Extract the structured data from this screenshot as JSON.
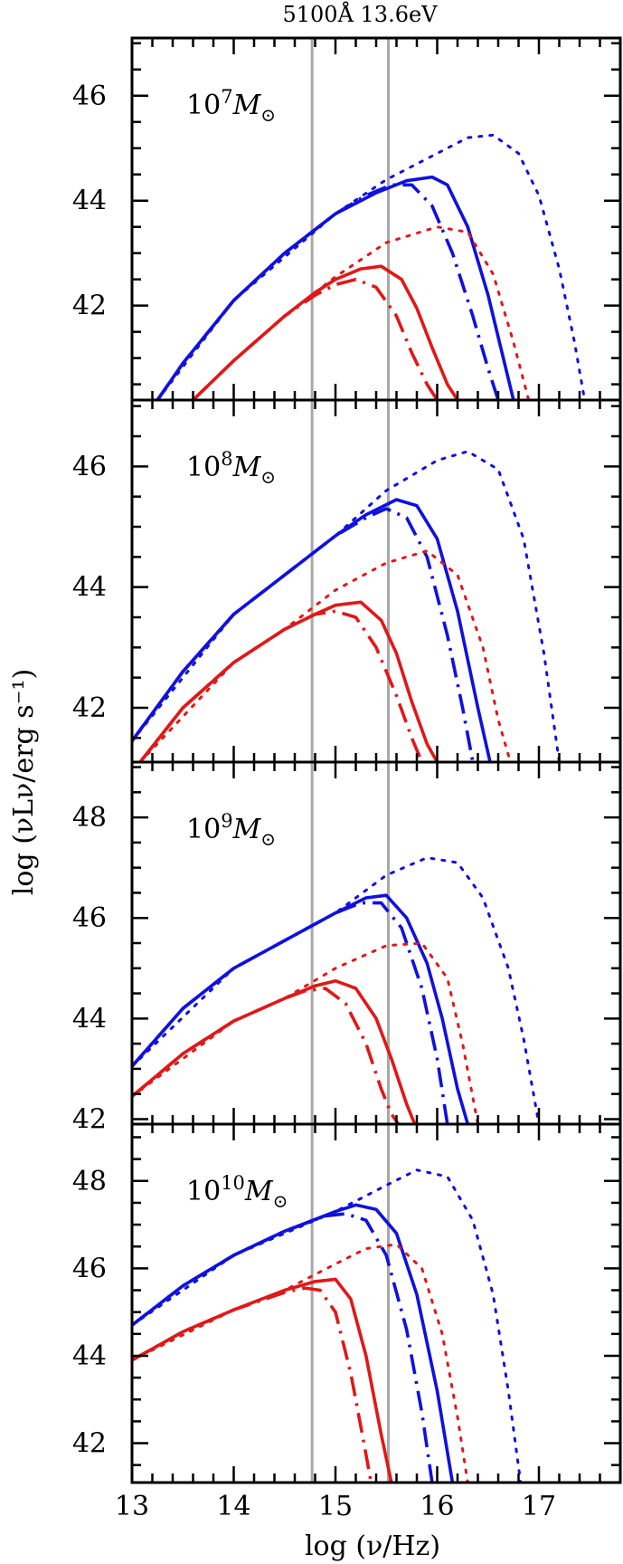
{
  "chart_data": {
    "type": "line",
    "top_annotation": "5100Å 13.6eV",
    "xlabel": "log (ν/Hz)",
    "ylabel": "log (νLν/erg s⁻¹)",
    "xlim": [
      13,
      17.8
    ],
    "xticks": [
      13,
      14,
      15,
      16,
      17
    ],
    "vertical_lines": [
      14.77,
      15.52
    ],
    "colors": {
      "blue": "#1010e0",
      "red": "#e01818",
      "vline": "#a8a8a8"
    },
    "panels": [
      {
        "label_base": "10",
        "label_exp": "7",
        "label_sub": "M",
        "ylim": [
          40.2,
          47.1
        ],
        "yticks": [
          42,
          44,
          46
        ],
        "series": [
          {
            "color": "blue",
            "style": "solid",
            "x": [
              13.25,
              13.5,
              14,
              14.5,
              15,
              15.4,
              15.7,
              15.95,
              16.1,
              16.3,
              16.5,
              16.65,
              16.75
            ],
            "y": [
              40.2,
              40.9,
              42.1,
              43.0,
              43.75,
              44.15,
              44.38,
              44.45,
              44.3,
              43.5,
              42.2,
              41.0,
              40.2
            ]
          },
          {
            "color": "blue",
            "style": "dashdot",
            "x": [
              13.25,
              13.5,
              14,
              14.5,
              15,
              15.3,
              15.55,
              15.75,
              15.95,
              16.15,
              16.35,
              16.5,
              16.6
            ],
            "y": [
              40.2,
              40.9,
              42.1,
              43.0,
              43.75,
              44.1,
              44.3,
              44.3,
              43.9,
              43.0,
              41.8,
              40.8,
              40.2
            ]
          },
          {
            "color": "blue",
            "style": "dotted",
            "x": [
              13.25,
              14,
              15,
              15.5,
              16,
              16.3,
              16.55,
              16.8,
              17.0,
              17.2,
              17.35,
              17.45
            ],
            "y": [
              40.2,
              42.1,
              43.75,
              44.4,
              44.9,
              45.2,
              45.25,
              44.9,
              44.1,
              42.7,
              41.3,
              40.2
            ]
          },
          {
            "color": "red",
            "style": "solid",
            "x": [
              13.6,
              14,
              14.5,
              14.8,
              15,
              15.25,
              15.45,
              15.65,
              15.8,
              15.95,
              16.1,
              16.2
            ],
            "y": [
              40.2,
              40.95,
              41.8,
              42.25,
              42.5,
              42.7,
              42.75,
              42.5,
              41.95,
              41.2,
              40.5,
              40.2
            ]
          },
          {
            "color": "red",
            "style": "dashdot",
            "x": [
              13.6,
              14,
              14.5,
              14.8,
              15,
              15.2,
              15.4,
              15.6,
              15.75,
              15.9,
              16.0
            ],
            "y": [
              40.2,
              40.95,
              41.8,
              42.2,
              42.4,
              42.5,
              42.35,
              41.8,
              41.1,
              40.5,
              40.2
            ]
          },
          {
            "color": "red",
            "style": "dotted",
            "x": [
              13.6,
              14,
              14.5,
              15,
              15.5,
              16.0,
              16.3,
              16.55,
              16.75,
              16.9
            ],
            "y": [
              40.2,
              40.95,
              41.8,
              42.55,
              43.2,
              43.5,
              43.4,
              42.6,
              41.3,
              40.2
            ]
          }
        ]
      },
      {
        "label_base": "10",
        "label_exp": "8",
        "label_sub": "M",
        "ylim": [
          41.1,
          47.1
        ],
        "yticks": [
          42,
          44,
          46
        ],
        "series": [
          {
            "color": "blue",
            "style": "solid",
            "x": [
              13,
              13.5,
              14,
              14.5,
              15,
              15.3,
              15.6,
              15.8,
              16.0,
              16.2,
              16.4,
              16.52
            ],
            "y": [
              41.45,
              42.6,
              43.55,
              44.2,
              44.85,
              45.2,
              45.45,
              45.35,
              44.8,
              43.6,
              42.0,
              41.1
            ]
          },
          {
            "color": "blue",
            "style": "dashdot",
            "x": [
              13,
              13.5,
              14,
              14.5,
              15,
              15.3,
              15.5,
              15.7,
              15.9,
              16.1,
              16.25,
              16.35
            ],
            "y": [
              41.45,
              42.6,
              43.55,
              44.2,
              44.85,
              45.15,
              45.3,
              45.15,
              44.5,
              43.2,
              42.0,
              41.1
            ]
          },
          {
            "color": "blue",
            "style": "dotted",
            "x": [
              13,
              14,
              15,
              15.5,
              16,
              16.3,
              16.6,
              16.85,
              17.05,
              17.2
            ],
            "y": [
              41.45,
              43.55,
              44.85,
              45.6,
              46.1,
              46.25,
              45.95,
              44.8,
              42.9,
              41.1
            ]
          },
          {
            "color": "red",
            "style": "solid",
            "x": [
              13.08,
              13.5,
              14,
              14.5,
              14.8,
              15.0,
              15.25,
              15.45,
              15.6,
              15.75,
              15.9,
              16.0
            ],
            "y": [
              41.1,
              42.0,
              42.75,
              43.3,
              43.55,
              43.7,
              43.75,
              43.45,
              42.9,
              42.1,
              41.4,
              41.1
            ]
          },
          {
            "color": "red",
            "style": "dashdot",
            "x": [
              13.08,
              13.5,
              14,
              14.5,
              14.8,
              15.0,
              15.2,
              15.4,
              15.6,
              15.75,
              15.85
            ],
            "y": [
              41.1,
              42.0,
              42.75,
              43.3,
              43.55,
              43.6,
              43.5,
              43.0,
              42.2,
              41.5,
              41.1
            ]
          },
          {
            "color": "red",
            "style": "dotted",
            "x": [
              13.08,
              14,
              14.5,
              15,
              15.5,
              15.9,
              16.2,
              16.45,
              16.6,
              16.72
            ],
            "y": [
              41.1,
              42.75,
              43.3,
              43.95,
              44.4,
              44.6,
              44.2,
              43.0,
              41.8,
              41.1
            ]
          }
        ]
      },
      {
        "label_base": "10",
        "label_exp": "9",
        "label_sub": "M",
        "ylim": [
          41.9,
          49.1
        ],
        "yticks": [
          42,
          44,
          46,
          48
        ],
        "series": [
          {
            "color": "blue",
            "style": "solid",
            "x": [
              13,
              13.5,
              14,
              14.5,
              15,
              15.3,
              15.5,
              15.7,
              15.9,
              16.05,
              16.2,
              16.3
            ],
            "y": [
              43.05,
              44.2,
              45.0,
              45.55,
              46.1,
              46.4,
              46.45,
              46.0,
              45.1,
              44.0,
              42.6,
              41.9
            ]
          },
          {
            "color": "blue",
            "style": "dashdot",
            "x": [
              13,
              13.5,
              14,
              14.5,
              15,
              15.25,
              15.45,
              15.65,
              15.85,
              16.0,
              16.1
            ],
            "y": [
              43.05,
              44.2,
              45.0,
              45.55,
              46.1,
              46.3,
              46.3,
              45.8,
              44.6,
              43.2,
              41.9
            ]
          },
          {
            "color": "blue",
            "style": "dotted",
            "x": [
              13,
              14,
              15,
              15.5,
              15.9,
              16.2,
              16.45,
              16.7,
              16.85,
              17.0
            ],
            "y": [
              43.05,
              45.0,
              46.1,
              46.85,
              47.2,
              47.1,
              46.4,
              45.0,
              43.6,
              41.9
            ]
          },
          {
            "color": "red",
            "style": "solid",
            "x": [
              13,
              13.5,
              14,
              14.5,
              14.8,
              15.0,
              15.2,
              15.4,
              15.55,
              15.7,
              15.78
            ],
            "y": [
              42.45,
              43.3,
              43.95,
              44.4,
              44.65,
              44.75,
              44.6,
              44.0,
              43.2,
              42.3,
              41.9
            ]
          },
          {
            "color": "red",
            "style": "dashdot",
            "x": [
              13,
              13.5,
              14,
              14.5,
              14.7,
              14.9,
              15.1,
              15.3,
              15.45,
              15.55,
              15.62
            ],
            "y": [
              42.45,
              43.3,
              43.95,
              44.4,
              44.55,
              44.6,
              44.3,
              43.5,
              42.6,
              42.1,
              41.9
            ]
          },
          {
            "color": "red",
            "style": "dotted",
            "x": [
              13,
              14,
              14.5,
              15,
              15.5,
              15.85,
              16.1,
              16.25,
              16.4
            ],
            "y": [
              42.45,
              43.95,
              44.4,
              45.0,
              45.45,
              45.5,
              44.8,
              43.5,
              41.9
            ]
          }
        ]
      },
      {
        "label_base": "10",
        "label_exp": "10",
        "label_sub": "M",
        "ylim": [
          41.1,
          49.3
        ],
        "yticks": [
          42,
          44,
          46,
          48
        ],
        "series": [
          {
            "color": "blue",
            "style": "solid",
            "x": [
              13,
              13.5,
              14,
              14.5,
              15,
              15.2,
              15.4,
              15.6,
              15.8,
              16.0,
              16.15
            ],
            "y": [
              44.7,
              45.6,
              46.3,
              46.85,
              47.3,
              47.45,
              47.35,
              46.8,
              45.4,
              43.2,
              41.1
            ]
          },
          {
            "color": "blue",
            "style": "dashdot",
            "x": [
              13,
              13.5,
              14,
              14.5,
              14.9,
              15.1,
              15.3,
              15.5,
              15.7,
              15.85,
              15.95
            ],
            "y": [
              44.7,
              45.6,
              46.3,
              46.85,
              47.2,
              47.25,
              47.1,
              46.3,
              44.6,
              42.7,
              41.1
            ]
          },
          {
            "color": "blue",
            "style": "dotted",
            "x": [
              13,
              14,
              15,
              15.5,
              15.8,
              16.1,
              16.35,
              16.55,
              16.7,
              16.82
            ],
            "y": [
              44.7,
              46.3,
              47.3,
              47.9,
              48.25,
              48.1,
              47.1,
              45.4,
              43.2,
              41.1
            ]
          },
          {
            "color": "red",
            "style": "solid",
            "x": [
              13,
              13.5,
              14,
              14.5,
              14.8,
              15.0,
              15.15,
              15.3,
              15.45,
              15.55
            ],
            "y": [
              43.9,
              44.55,
              45.05,
              45.5,
              45.7,
              45.75,
              45.3,
              44.0,
              42.2,
              41.1
            ]
          },
          {
            "color": "red",
            "style": "dashdot",
            "x": [
              13,
              13.5,
              14,
              14.5,
              14.7,
              14.85,
              15.0,
              15.15,
              15.28,
              15.35
            ],
            "y": [
              43.9,
              44.55,
              45.05,
              45.45,
              45.55,
              45.5,
              45.0,
              43.6,
              42.0,
              41.1
            ]
          },
          {
            "color": "red",
            "style": "dotted",
            "x": [
              13,
              14,
              14.5,
              15,
              15.3,
              15.6,
              15.85,
              16.05,
              16.2,
              16.3
            ],
            "y": [
              43.9,
              45.05,
              45.5,
              46.1,
              46.45,
              46.55,
              46.0,
              44.5,
              42.6,
              41.1
            ]
          }
        ]
      }
    ]
  }
}
